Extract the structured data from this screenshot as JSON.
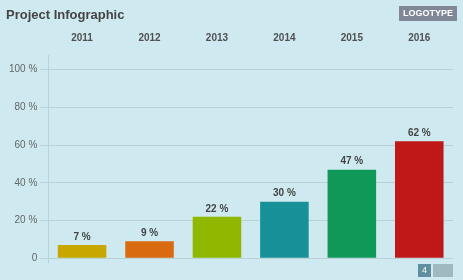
{
  "chart_data": {
    "type": "bar",
    "title": "Project Infographic",
    "categories": [
      "2011",
      "2012",
      "2013",
      "2014",
      "2015",
      "2016"
    ],
    "values": [
      7,
      9,
      22,
      30,
      47,
      62
    ],
    "value_labels": [
      "7 %",
      "9 %",
      "22 %",
      "30 %",
      "47 %",
      "62 %"
    ],
    "data_labels": true,
    "colors": [
      "#c8a800",
      "#d96a10",
      "#90b800",
      "#189098",
      "#109858",
      "#c01818"
    ],
    "ylim": [
      -2,
      107.5
    ],
    "yticks": [
      0,
      {
        "value": 20,
        "label": "20 %"
      },
      {
        "value": 40,
        "label": "40 %"
      },
      {
        "value": 60,
        "label": "60 %"
      },
      {
        "value": 80,
        "label": "80 %"
      },
      {
        "value": 100,
        "label": "100 %"
      }
    ],
    "grid": true,
    "annotations": [
      "LOGOTYPE",
      "4"
    ]
  }
}
